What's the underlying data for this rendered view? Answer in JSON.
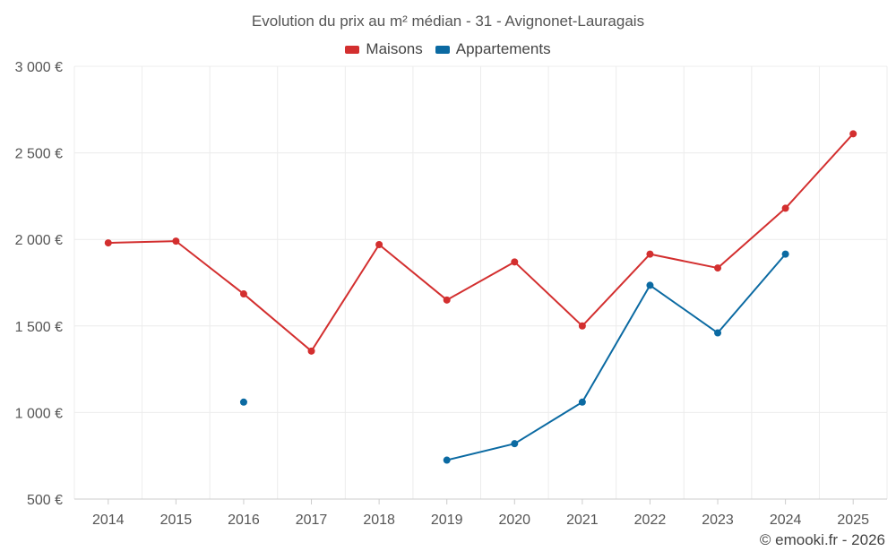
{
  "chart_data": {
    "type": "line",
    "title": "Evolution du prix au m² médian - 31 - Avignonet-Lauragais",
    "categories": [
      "2014",
      "2015",
      "2016",
      "2017",
      "2018",
      "2019",
      "2020",
      "2021",
      "2022",
      "2023",
      "2024",
      "2025"
    ],
    "y_ticks": [
      "500 €",
      "1 000 €",
      "1 500 €",
      "2 000 €",
      "2 500 €",
      "3 000 €"
    ],
    "ylim": [
      500,
      3000
    ],
    "xlabel": "",
    "ylabel": "",
    "grid": true,
    "legend_position": "top-center",
    "series": [
      {
        "name": "Maisons",
        "color": "#d32f2f",
        "values": [
          1980,
          1990,
          1685,
          1355,
          1970,
          1650,
          1870,
          1500,
          1915,
          1835,
          2180,
          2610
        ]
      },
      {
        "name": "Appartements",
        "color": "#0b6aa2",
        "values": [
          null,
          null,
          1060,
          null,
          null,
          725,
          820,
          1060,
          1735,
          1460,
          1915,
          null
        ]
      }
    ]
  },
  "credit": "© emooki.fr - 2026"
}
